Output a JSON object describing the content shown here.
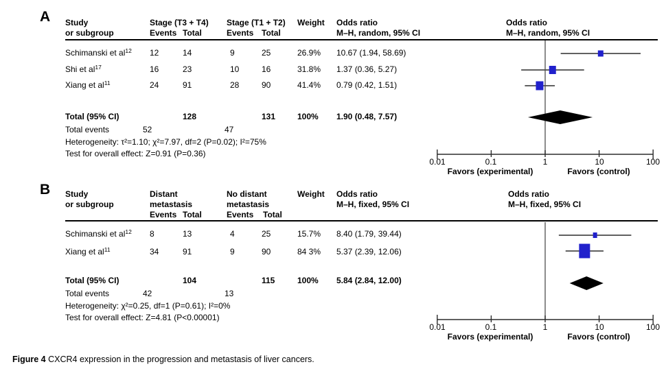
{
  "colors": {
    "square": "#2121cc",
    "diamond": "#000000",
    "ci_line": "#4a4a4a",
    "center_line": "#5a5a5a",
    "axis_line": "#2b2b2b"
  },
  "axis": {
    "ticks": [
      "0.01",
      "0.1",
      "1",
      "10",
      "100"
    ],
    "favors_left": "Favors (experimental)",
    "favors_right": "Favors (control)"
  },
  "caption": {
    "bold": "Figure 4",
    "text": " CXCR4 expression in the progression and metastasis of liver cancers."
  },
  "panelA": {
    "label": "A",
    "hdr": {
      "study1": "Study",
      "study2": "or subgroup",
      "g1": "Stage (T3 + T4)",
      "g2": "Stage (T1 + T2)",
      "events": "Events",
      "total": "Total",
      "weight": "Weight",
      "or1": "Odds ratio",
      "or2": "M–H, random, 95% CI"
    },
    "rows": [
      {
        "study": "Schimanski et al",
        "ref": "12",
        "e1": "12",
        "t1": "14",
        "e2": "9",
        "t2": "25",
        "w": "26.9%",
        "or": "10.67 (1.94, 58.69)"
      },
      {
        "study": "Shi et al",
        "ref": "17",
        "e1": "16",
        "t1": "23",
        "e2": "10",
        "t2": "16",
        "w": "31.8%",
        "or": "1.37 (0.36, 5.27)"
      },
      {
        "study": "Xiang et al",
        "ref": "11",
        "e1": "24",
        "t1": "91",
        "e2": "28",
        "t2": "90",
        "w": "41.4%",
        "or": "0.79 (0.42, 1.51)"
      }
    ],
    "total": {
      "label": "Total (95% CI)",
      "t1": "128",
      "t2": "131",
      "w": "100%",
      "or": "1.90 (0.48, 7.57)"
    },
    "events": {
      "label": "Total events",
      "v1": "52",
      "v2": "47"
    },
    "het": "Heterogeneity: τ²=1.10; χ²=7.97, df=2 (P=0.02); I²=75%",
    "test": "Test for overall effect: Z=0.91 (P=0.36)"
  },
  "panelB": {
    "label": "B",
    "hdr": {
      "study1": "Study",
      "study2": "or subgroup",
      "g1a": "Distant",
      "g1b": "metastasis",
      "g2a": "No distant",
      "g2b": "metastasis",
      "events": "Events",
      "total": "Total",
      "weight": "Weight",
      "or1": "Odds ratio",
      "or2": "M–H, fixed, 95% CI"
    },
    "rows": [
      {
        "study": "Schimanski et al",
        "ref": "12",
        "e1": "8",
        "t1": "13",
        "e2": "4",
        "t2": "25",
        "w": "15.7%",
        "or": "8.40 (1.79, 39.44)"
      },
      {
        "study": "Xiang et al",
        "ref": "11",
        "e1": "34",
        "t1": "91",
        "e2": "9",
        "t2": "90",
        "w": "84 3%",
        "or": "5.37 (2.39, 12.06)"
      }
    ],
    "total": {
      "label": "Total (95% CI)",
      "t1": "104",
      "t2": "115",
      "w": "100%",
      "or": "5.84 (2.84, 12.00)"
    },
    "events": {
      "label": "Total events",
      "v1": "42",
      "v2": "13"
    },
    "het": "Heterogeneity: χ²=0.25, df=1 (P=0.61); I²=0%",
    "test": "Test for overall effect: Z=4.81 (P<0.00001)"
  },
  "chart_data": [
    {
      "type": "forest",
      "panel": "A",
      "effect_measure": "Odds ratio",
      "model": "M–H, random, 95% CI",
      "x_scale": "log",
      "x_ticks": [
        0.01,
        0.1,
        1,
        10,
        100
      ],
      "favors_left": "Favors (experimental)",
      "favors_right": "Favors (control)",
      "studies": [
        {
          "name": "Schimanski et al 12",
          "events_exp": 12,
          "total_exp": 14,
          "events_ctl": 9,
          "total_ctl": 25,
          "weight_pct": 26.9,
          "or": 10.67,
          "ci_low": 1.94,
          "ci_high": 58.69
        },
        {
          "name": "Shi et al 17",
          "events_exp": 16,
          "total_exp": 23,
          "events_ctl": 10,
          "total_ctl": 16,
          "weight_pct": 31.8,
          "or": 1.37,
          "ci_low": 0.36,
          "ci_high": 5.27
        },
        {
          "name": "Xiang et al 11",
          "events_exp": 24,
          "total_exp": 91,
          "events_ctl": 28,
          "total_ctl": 90,
          "weight_pct": 41.4,
          "or": 0.79,
          "ci_low": 0.42,
          "ci_high": 1.51
        }
      ],
      "total": {
        "or": 1.9,
        "ci_low": 0.48,
        "ci_high": 7.57,
        "total_exp": 128,
        "total_ctl": 131,
        "events_exp": 52,
        "events_ctl": 47
      }
    },
    {
      "type": "forest",
      "panel": "B",
      "effect_measure": "Odds ratio",
      "model": "M–H, fixed, 95% CI",
      "x_scale": "log",
      "x_ticks": [
        0.01,
        0.1,
        1,
        10,
        100
      ],
      "favors_left": "Favors (experimental)",
      "favors_right": "Favors (control)",
      "studies": [
        {
          "name": "Schimanski et al 12",
          "events_exp": 8,
          "total_exp": 13,
          "events_ctl": 4,
          "total_ctl": 25,
          "weight_pct": 15.7,
          "or": 8.4,
          "ci_low": 1.79,
          "ci_high": 39.44
        },
        {
          "name": "Xiang et al 11",
          "events_exp": 34,
          "total_exp": 91,
          "events_ctl": 9,
          "total_ctl": 90,
          "weight_pct": 84.3,
          "or": 5.37,
          "ci_low": 2.39,
          "ci_high": 12.06
        }
      ],
      "total": {
        "or": 5.84,
        "ci_low": 2.84,
        "ci_high": 12.0,
        "total_exp": 104,
        "total_ctl": 115,
        "events_exp": 42,
        "events_ctl": 13
      }
    }
  ]
}
